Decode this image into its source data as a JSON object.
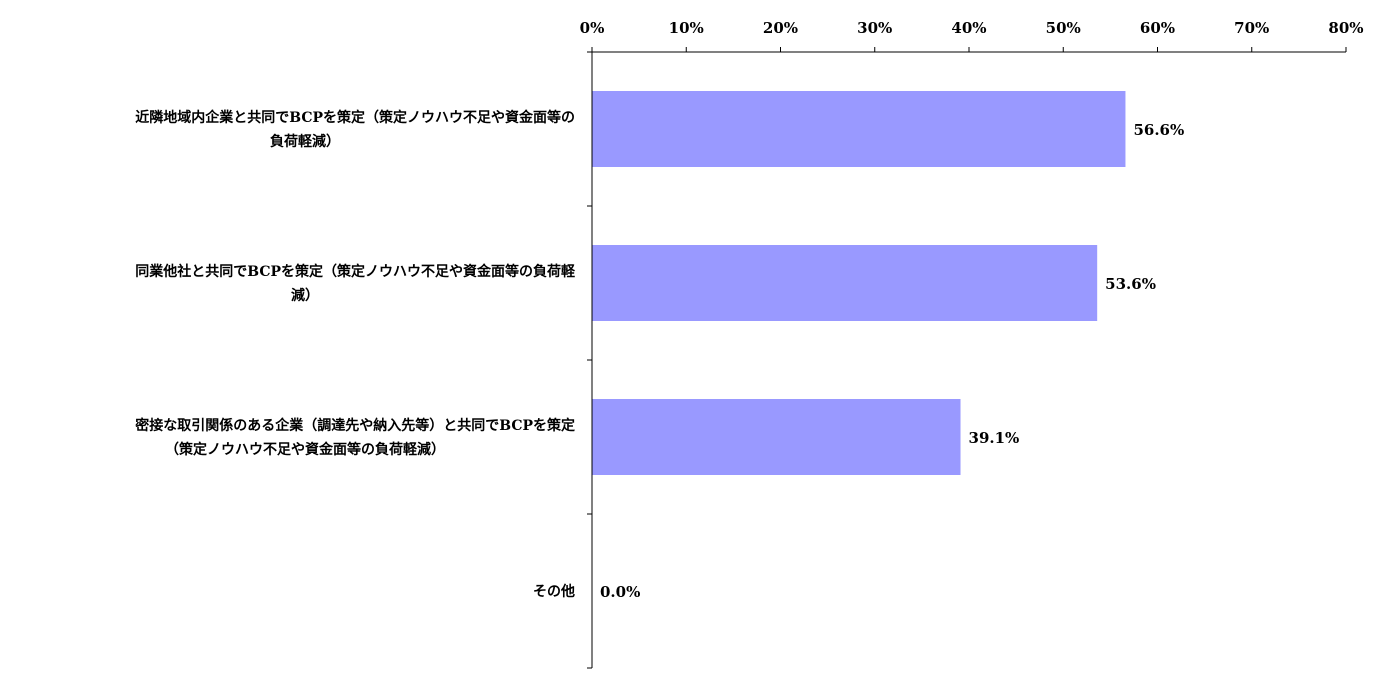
{
  "chart_data": {
    "type": "bar",
    "orientation": "horizontal",
    "categories": [
      [
        "近隣地域内企業と共同でBCPを策定（策定ノウハウ不足や資金面等の",
        "負荷軽減）"
      ],
      [
        "同業他社と共同でBCPを策定（策定ノウハウ不足や資金面等の負荷軽",
        "減）"
      ],
      [
        "密接な取引関係のある企業（調達先や納入先等）と共同でBCPを策定",
        "（策定ノウハウ不足や資金面等の負荷軽減）"
      ],
      [
        "その他"
      ]
    ],
    "values": [
      56.6,
      53.6,
      39.1,
      0.0
    ],
    "data_labels": [
      "56.6%",
      "53.6%",
      "39.1%",
      "0.0%"
    ],
    "xlim": [
      0,
      80
    ],
    "xticks": [
      0,
      10,
      20,
      30,
      40,
      50,
      60,
      70,
      80
    ],
    "xtick_labels": [
      "0%",
      "10%",
      "20%",
      "30%",
      "40%",
      "50%",
      "60%",
      "70%",
      "80%"
    ],
    "x_axis_position": "top",
    "grid": false,
    "legend": "none",
    "bar_color": "#9999ff"
  }
}
